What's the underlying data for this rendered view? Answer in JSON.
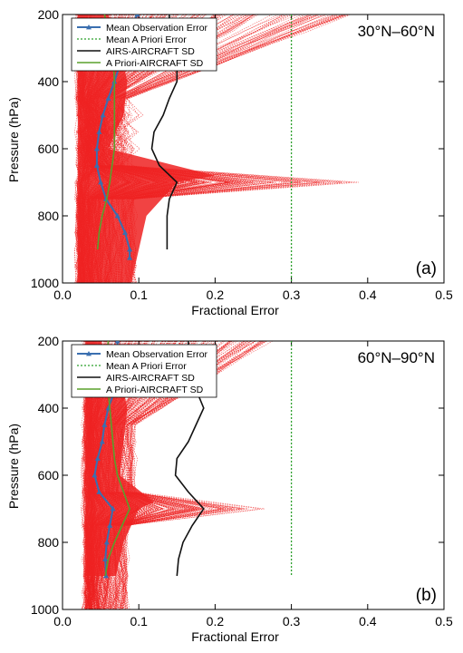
{
  "chart_data": [
    {
      "type": "line",
      "panel_label": "(a)",
      "region_label": "30°N–60°N",
      "xlabel": "Fractional Error",
      "ylabel": "Pressure (hPa)",
      "xlim": [
        0,
        0.5
      ],
      "ylim": [
        1000,
        200
      ],
      "y_inverted": true,
      "x_ticks": [
        "0.0",
        "0.1",
        "0.2",
        "0.3",
        "0.4",
        "0.5"
      ],
      "y_ticks": [
        "200",
        "400",
        "600",
        "800",
        "1000"
      ],
      "legend_position": "top-left",
      "legend": [
        "Mean Observation Error",
        "Mean A Priori Error",
        "AIRS-AIRCRAFT SD",
        "A Priori-AIRCRAFT SD"
      ],
      "colors": {
        "individual_profiles": "#ee2222",
        "mean_observation_error": "#3a6fb0",
        "mean_a_priori_error": "#2ca02c",
        "airs_aircraft_sd": "#111111",
        "a_priori_aircraft_sd": "#5aa02c"
      },
      "series": [
        {
          "name": "Mean Observation Error",
          "style": "solid-triangle-markers",
          "x": [
            0.098,
            0.088,
            0.083,
            0.075,
            0.068,
            0.06,
            0.053,
            0.048,
            0.045,
            0.045,
            0.05,
            0.057,
            0.072,
            0.082,
            0.088,
            0.088
          ],
          "y": [
            200,
            250,
            300,
            350,
            400,
            450,
            500,
            550,
            600,
            650,
            700,
            750,
            800,
            850,
            900,
            925
          ]
        },
        {
          "name": "Mean A Priori Error",
          "style": "dotted",
          "x": [
            0.3,
            0.3
          ],
          "y": [
            200,
            1000
          ]
        },
        {
          "name": "AIRS-AIRCRAFT SD",
          "style": "solid",
          "x": [
            0.14,
            0.14,
            0.146,
            0.15,
            0.15,
            0.14,
            0.132,
            0.12,
            0.117,
            0.127,
            0.15,
            0.14,
            0.137,
            0.137,
            0.137
          ],
          "y": [
            200,
            250,
            300,
            350,
            400,
            450,
            500,
            550,
            600,
            650,
            700,
            750,
            800,
            850,
            900
          ]
        },
        {
          "name": "A Priori-AIRCRAFT SD",
          "style": "solid",
          "x": [
            0.055,
            0.06,
            0.065,
            0.067,
            0.068,
            0.068,
            0.068,
            0.068,
            0.068,
            0.065,
            0.062,
            0.058,
            0.052,
            0.048,
            0.046
          ],
          "y": [
            200,
            250,
            300,
            350,
            400,
            450,
            500,
            550,
            600,
            650,
            700,
            750,
            800,
            850,
            900
          ]
        }
      ]
    },
    {
      "type": "line",
      "panel_label": "(b)",
      "region_label": "60°N–90°N",
      "xlabel": "Fractional Error",
      "ylabel": "Pressure (hPa)",
      "xlim": [
        0,
        0.5
      ],
      "ylim": [
        1000,
        200
      ],
      "y_inverted": true,
      "x_ticks": [
        "0.0",
        "0.1",
        "0.2",
        "0.3",
        "0.4",
        "0.5"
      ],
      "y_ticks": [
        "200",
        "400",
        "600",
        "800",
        "1000"
      ],
      "legend_position": "top-left",
      "legend": [
        "Mean Observation Error",
        "Mean A Priori Error",
        "AIRS-AIRCRAFT SD",
        "A Priori-AIRCRAFT SD"
      ],
      "colors": {
        "individual_profiles": "#ee2222",
        "mean_observation_error": "#3a6fb0",
        "mean_a_priori_error": "#2ca02c",
        "airs_aircraft_sd": "#111111",
        "a_priori_aircraft_sd": "#5aa02c"
      },
      "series": [
        {
          "name": "Mean Observation Error",
          "style": "solid-triangle-markers",
          "x": [
            0.072,
            0.072,
            0.07,
            0.068,
            0.06,
            0.055,
            0.052,
            0.046,
            0.042,
            0.048,
            0.066,
            0.062,
            0.058,
            0.056,
            0.057
          ],
          "y": [
            200,
            250,
            300,
            350,
            400,
            450,
            500,
            550,
            600,
            650,
            700,
            750,
            800,
            850,
            900
          ]
        },
        {
          "name": "Mean A Priori Error",
          "style": "dotted",
          "x": [
            0.3,
            0.3
          ],
          "y": [
            200,
            900
          ]
        },
        {
          "name": "AIRS-AIRCRAFT SD",
          "style": "solid",
          "x": [
            0.165,
            0.165,
            0.17,
            0.176,
            0.185,
            0.175,
            0.165,
            0.15,
            0.148,
            0.165,
            0.185,
            0.17,
            0.158,
            0.152,
            0.15
          ],
          "y": [
            200,
            250,
            300,
            350,
            400,
            450,
            500,
            550,
            600,
            650,
            700,
            750,
            800,
            850,
            900
          ]
        },
        {
          "name": "A Priori-AIRCRAFT SD",
          "style": "solid",
          "x": [
            0.06,
            0.058,
            0.058,
            0.06,
            0.062,
            0.064,
            0.066,
            0.068,
            0.072,
            0.08,
            0.088,
            0.078,
            0.068,
            0.06,
            0.056
          ],
          "y": [
            200,
            250,
            300,
            350,
            400,
            450,
            500,
            550,
            600,
            650,
            700,
            750,
            800,
            850,
            900
          ]
        }
      ]
    }
  ]
}
